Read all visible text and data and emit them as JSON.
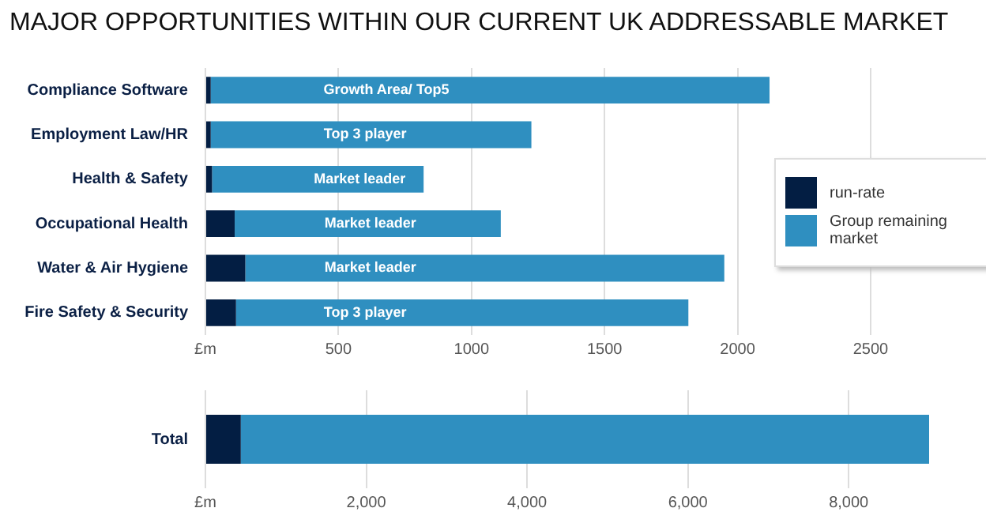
{
  "chart_data": [
    {
      "type": "bar",
      "orientation": "horizontal",
      "stacked": true,
      "title": "MAJOR OPPORTUNITIES WITHIN OUR CURRENT UK ADDRESSABLE MARKET",
      "categories": [
        "Compliance Software",
        "Employment Law/HR",
        "Health & Safety",
        "Occupational Health",
        "Water & Air Hygiene",
        "Fire Safety & Security"
      ],
      "series": [
        {
          "name": "run-rate",
          "color": "#031e43",
          "values": [
            20,
            20,
            25,
            110,
            150,
            115
          ]
        },
        {
          "name": "Group remaining market",
          "color": "#2f8fc0",
          "values": [
            2100,
            1205,
            795,
            1000,
            1800,
            1700
          ]
        }
      ],
      "xlim": [
        0,
        2500
      ],
      "xticks": [
        {
          "value": 0,
          "label": "£m"
        },
        500,
        1000,
        1500,
        2000,
        2500
      ],
      "grid": "x",
      "legend": "right",
      "annotations": [
        {
          "text": "Growth Area/ Top5",
          "x": 680,
          "y": "Compliance Software"
        },
        {
          "text": "Top 3 player",
          "x": 600,
          "y": "Employment Law/HR"
        },
        {
          "text": "Market leader",
          "x": 580,
          "y": "Health & Safety"
        },
        {
          "text": "Market leader",
          "x": 620,
          "y": "Occupational Health"
        },
        {
          "text": "Market leader",
          "x": 620,
          "y": "Water & Air Hygiene"
        },
        {
          "text": "Top 3 player",
          "x": 600,
          "y": "Fire Safety & Security"
        }
      ]
    },
    {
      "type": "bar",
      "orientation": "horizontal",
      "stacked": true,
      "categories": [
        "Total"
      ],
      "series": [
        {
          "color": "#031e43",
          "values": [
            440
          ]
        },
        {
          "color": "#2f8fc0",
          "values": [
            8560
          ]
        }
      ],
      "xlim": [
        0,
        9000
      ],
      "xticks": [
        {
          "value": 0,
          "label": "£m"
        },
        {
          "value": 2000,
          "label": "2,000"
        },
        {
          "value": 4000,
          "label": "4,000"
        },
        {
          "value": 6000,
          "label": "6,000"
        },
        {
          "value": 8000,
          "label": "8,000"
        }
      ],
      "grid": "x"
    }
  ]
}
